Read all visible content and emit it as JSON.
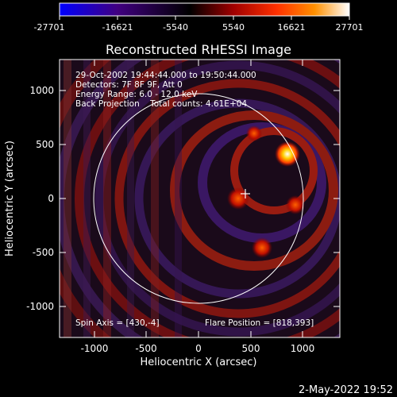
{
  "colorbar": {
    "ticks": [
      "-27701",
      "-16621",
      "-5540",
      "5540",
      "16621",
      "27701"
    ],
    "gradient": [
      "#0000ff",
      "#400080",
      "#000000",
      "#a00000",
      "#ff3000",
      "#ff9000",
      "#ffffff"
    ]
  },
  "title": "Reconstructed RHESSI Image",
  "info_lines": [
    "29-Oct-2002 19:44:44.000 to 19:50:44.000",
    "Detectors: 7F 8F 9F, Att 0",
    "Energy Range: 6.0 - 12.0 keV",
    "Back Projection    Total counts: 4.61E+04"
  ],
  "spin_axis": "Spin Axis = [430,-4]",
  "flare_position": "Flare Position = [818,393]",
  "xlabel": "Heliocentric X (arcsec)",
  "ylabel": "Heliocentric Y (arcsec)",
  "x_ticks": [
    "-1000",
    "-500",
    "0",
    "500",
    "1000"
  ],
  "y_ticks": [
    "1000",
    "500",
    "0",
    "-500",
    "-1000"
  ],
  "footer_date": "2-May-2022 19:52"
}
